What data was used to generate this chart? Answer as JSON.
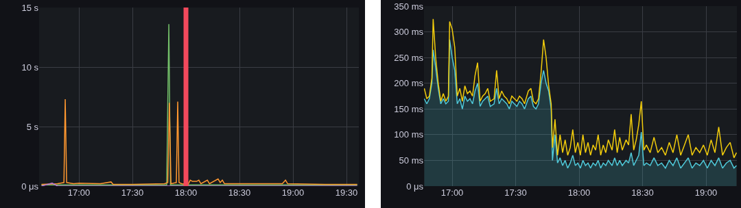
{
  "chart_data": [
    {
      "type": "line",
      "xlim": [
        16.628,
        19.615
      ],
      "ylim": [
        0,
        15
      ],
      "grid": true,
      "xticks": [
        {
          "value": 17,
          "label": "17:00"
        },
        {
          "value": 17.5,
          "label": "17:30"
        },
        {
          "value": 18,
          "label": "18:00"
        },
        {
          "value": 18.5,
          "label": "18:30"
        },
        {
          "value": 19,
          "label": "19:00"
        },
        {
          "value": 19.5,
          "label": "19:30"
        }
      ],
      "yticks": [
        {
          "value": 0,
          "label": "0 μs"
        },
        {
          "value": 5,
          "label": "5 s"
        },
        {
          "value": 10,
          "label": "10 s"
        },
        {
          "value": 15,
          "label": "15 s"
        }
      ],
      "ref_lines": [
        {
          "axis": "x",
          "value": 18,
          "color": "#f2495c"
        }
      ],
      "series": [
        {
          "color": "#73bf69",
          "x": [
            16.65,
            17.82,
            17.84,
            17.855,
            19.6
          ],
          "values": [
            0.1,
            0.1,
            13.6,
            0.1,
            0.1
          ]
        },
        {
          "color": "#ff9830",
          "x": [
            16.65,
            16.8,
            16.86,
            16.872,
            16.885,
            16.95,
            17.0,
            17.2,
            17.3,
            17.32,
            17.5,
            17.8,
            17.83,
            17.845,
            17.86,
            17.91,
            17.923,
            17.935,
            17.96,
            18.02,
            18.04,
            18.06,
            18.1,
            18.12,
            18.14,
            18.2,
            18.22,
            18.3,
            18.32,
            18.34,
            18.36,
            18.5,
            18.9,
            18.93,
            18.95,
            19.3,
            19.6
          ],
          "values": [
            0.15,
            0.2,
            0.3,
            7.3,
            0.3,
            0.2,
            0.25,
            0.2,
            0.35,
            0.15,
            0.15,
            0.2,
            0.3,
            7.0,
            0.2,
            0.3,
            7.1,
            0.3,
            0.2,
            0.15,
            0.5,
            0.4,
            0.4,
            0.5,
            0.2,
            0.5,
            0.2,
            0.6,
            0.3,
            0.5,
            0.2,
            0.2,
            0.2,
            0.5,
            0.2,
            0.15,
            0.15
          ]
        },
        {
          "color": "#b877d9",
          "x": [
            16.65,
            16.75,
            16.8,
            17.5,
            18.5,
            19.6
          ],
          "values": [
            0.0,
            0.25,
            0.0,
            0.0,
            0.0,
            0.0
          ]
        }
      ]
    },
    {
      "type": "line",
      "xlim": [
        16.778,
        19.243
      ],
      "ylim": [
        0,
        350
      ],
      "grid": true,
      "xticks": [
        {
          "value": 17,
          "label": "17:00"
        },
        {
          "value": 17.5,
          "label": "17:30"
        },
        {
          "value": 18,
          "label": "18:00"
        },
        {
          "value": 18.5,
          "label": "18:30"
        },
        {
          "value": 19,
          "label": "19:00"
        }
      ],
      "yticks": [
        {
          "value": 0,
          "label": "0 μs"
        },
        {
          "value": 50,
          "label": "50 ms"
        },
        {
          "value": 100,
          "label": "100 ms"
        },
        {
          "value": 150,
          "label": "150 ms"
        },
        {
          "value": 200,
          "label": "200 ms"
        },
        {
          "value": 250,
          "label": "250 ms"
        },
        {
          "value": 300,
          "label": "300 ms"
        },
        {
          "value": 350,
          "label": "350 ms"
        }
      ],
      "series": [
        {
          "type": "area",
          "color": "#4fc8d8",
          "x": [
            16.78,
            16.8,
            16.82,
            16.84,
            16.85,
            16.87,
            16.89,
            16.91,
            16.93,
            16.95,
            16.97,
            16.98,
            17.0,
            17.02,
            17.04,
            17.06,
            17.08,
            17.1,
            17.12,
            17.14,
            17.16,
            17.18,
            17.2,
            17.22,
            17.24,
            17.26,
            17.28,
            17.3,
            17.33,
            17.35,
            17.37,
            17.39,
            17.41,
            17.43,
            17.45,
            17.47,
            17.49,
            17.51,
            17.53,
            17.55,
            17.57,
            17.6,
            17.62,
            17.64,
            17.66,
            17.68,
            17.7,
            17.72,
            17.74,
            17.76,
            17.78,
            17.79,
            17.81,
            17.83,
            17.85,
            17.87,
            17.89,
            17.91,
            17.93,
            17.95,
            17.97,
            17.99,
            18.01,
            18.03,
            18.05,
            18.07,
            18.09,
            18.11,
            18.13,
            18.15,
            18.17,
            18.19,
            18.21,
            18.23,
            18.26,
            18.28,
            18.3,
            18.32,
            18.34,
            18.37,
            18.39,
            18.41,
            18.43,
            18.45,
            18.47,
            18.49,
            18.51,
            18.53,
            18.56,
            18.59,
            18.62,
            18.65,
            18.68,
            18.71,
            18.74,
            18.77,
            18.8,
            18.83,
            18.86,
            18.89,
            18.92,
            18.95,
            18.98,
            19.01,
            19.04,
            19.07,
            19.1,
            19.13,
            19.16,
            19.19,
            19.22,
            19.24
          ],
          "values": [
            170,
            160,
            170,
            200,
            265,
            230,
            190,
            160,
            170,
            160,
            165,
            285,
            250,
            225,
            160,
            170,
            150,
            175,
            165,
            170,
            160,
            185,
            200,
            155,
            165,
            170,
            175,
            155,
            160,
            190,
            160,
            170,
            165,
            160,
            150,
            165,
            160,
            155,
            165,
            160,
            150,
            170,
            175,
            155,
            150,
            160,
            200,
            225,
            200,
            185,
            150,
            50,
            100,
            45,
            55,
            40,
            50,
            35,
            45,
            60,
            40,
            45,
            35,
            50,
            40,
            45,
            35,
            45,
            40,
            50,
            35,
            45,
            40,
            50,
            40,
            55,
            40,
            50,
            40,
            50,
            45,
            65,
            40,
            50,
            60,
            105,
            40,
            45,
            40,
            55,
            40,
            45,
            35,
            50,
            40,
            55,
            35,
            45,
            55,
            35,
            45,
            40,
            50,
            35,
            50,
            40,
            55,
            35,
            45,
            50,
            35,
            40
          ]
        },
        {
          "color": "#f2cc0c",
          "x": [
            16.78,
            16.8,
            16.82,
            16.84,
            16.85,
            16.87,
            16.89,
            16.91,
            16.93,
            16.95,
            16.97,
            16.98,
            17.0,
            17.02,
            17.04,
            17.06,
            17.08,
            17.1,
            17.12,
            17.14,
            17.16,
            17.18,
            17.2,
            17.22,
            17.24,
            17.26,
            17.28,
            17.3,
            17.33,
            17.35,
            17.37,
            17.39,
            17.41,
            17.43,
            17.45,
            17.47,
            17.49,
            17.51,
            17.53,
            17.55,
            17.57,
            17.6,
            17.62,
            17.64,
            17.66,
            17.68,
            17.7,
            17.72,
            17.74,
            17.76,
            17.78,
            17.79,
            17.81,
            17.83,
            17.85,
            17.87,
            17.89,
            17.91,
            17.93,
            17.95,
            17.97,
            17.99,
            18.01,
            18.03,
            18.05,
            18.07,
            18.09,
            18.11,
            18.13,
            18.15,
            18.17,
            18.19,
            18.21,
            18.23,
            18.26,
            18.28,
            18.3,
            18.32,
            18.34,
            18.37,
            18.39,
            18.41,
            18.43,
            18.45,
            18.47,
            18.49,
            18.51,
            18.53,
            18.56,
            18.59,
            18.62,
            18.65,
            18.68,
            18.71,
            18.74,
            18.77,
            18.8,
            18.83,
            18.86,
            18.89,
            18.92,
            18.95,
            18.98,
            19.01,
            19.04,
            19.07,
            19.1,
            19.13,
            19.16,
            19.19,
            19.22,
            19.24
          ],
          "values": [
            190,
            170,
            175,
            210,
            325,
            250,
            200,
            165,
            180,
            165,
            175,
            320,
            305,
            270,
            175,
            190,
            165,
            195,
            180,
            185,
            175,
            215,
            240,
            165,
            175,
            180,
            190,
            165,
            170,
            225,
            170,
            185,
            175,
            170,
            160,
            175,
            170,
            165,
            175,
            170,
            160,
            185,
            190,
            165,
            160,
            170,
            220,
            285,
            250,
            195,
            160,
            75,
            130,
            60,
            100,
            65,
            90,
            60,
            75,
            110,
            65,
            85,
            60,
            100,
            65,
            85,
            60,
            80,
            70,
            100,
            60,
            80,
            65,
            90,
            70,
            110,
            65,
            95,
            70,
            90,
            80,
            140,
            70,
            90,
            120,
            165,
            70,
            80,
            65,
            95,
            65,
            75,
            60,
            85,
            65,
            100,
            60,
            80,
            100,
            60,
            75,
            65,
            80,
            60,
            90,
            65,
            115,
            60,
            75,
            85,
            55,
            65
          ]
        }
      ]
    }
  ]
}
